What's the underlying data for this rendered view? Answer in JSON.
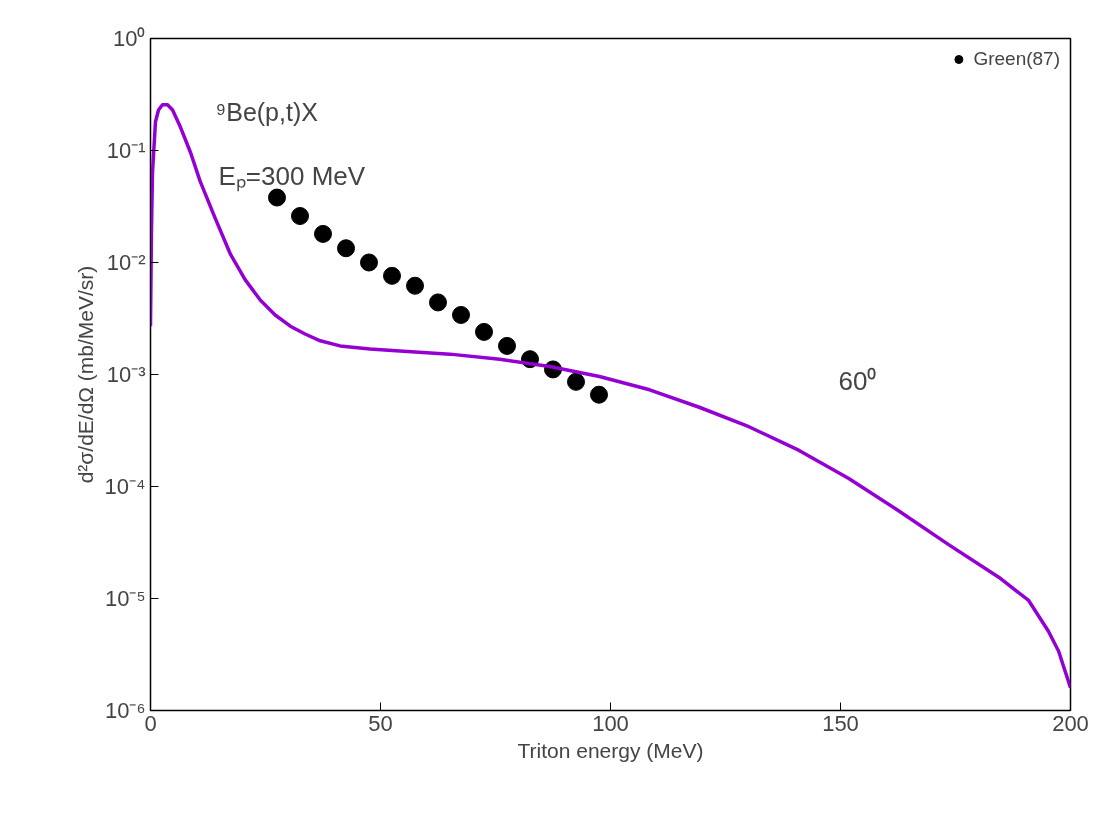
{
  "chart_data": {
    "type": "scatter",
    "xlabel": "Triton energy (MeV)",
    "ylabel": "d²σ/dE/dΩ (mb/MeV/sr)",
    "annotations": [
      "⁹Be(p,t)X",
      "Eₚ=300 MeV",
      "60⁰"
    ],
    "log": "y",
    "xlim": [
      0,
      200
    ],
    "xticks": [
      0,
      50,
      100,
      150,
      200
    ],
    "ylim": [
      1e-06,
      1
    ],
    "yticks": [
      {
        "value": 1e-06,
        "label": "10⁻⁶"
      },
      {
        "value": 1e-05,
        "label": "10⁻⁵"
      },
      {
        "value": 0.0001,
        "label": "10⁻⁴"
      },
      {
        "value": 0.001,
        "label": "10⁻³"
      },
      {
        "value": 0.01,
        "label": "10⁻²"
      },
      {
        "value": 0.1,
        "label": "10⁻¹"
      },
      {
        "value": 1,
        "label": "10⁰"
      }
    ],
    "grid": false,
    "legend": "top right",
    "series": [
      {
        "name": "Green(87)",
        "marker": "circle",
        "color": "#000000",
        "x": [
          27.5,
          32.5,
          37.5,
          42.5,
          47.5,
          52.5,
          57.5,
          62.5,
          67.5,
          72.5,
          77.5,
          82.5,
          87.5,
          92.5,
          97.5
        ],
        "values": [
          0.038,
          0.026,
          0.018,
          0.0134,
          0.01,
          0.0076,
          0.0062,
          0.0044,
          0.0034,
          0.0024,
          0.0018,
          0.00137,
          0.00111,
          0.00086,
          0.00066
        ]
      },
      {
        "type": "line",
        "line_style": "solid",
        "color": "#9400d3",
        "x": [
          0,
          0.2,
          0.43,
          1.08,
          1.74,
          2.6,
          3.7,
          4.8,
          6.5,
          8.7,
          10.8,
          14.1,
          17.4,
          20.6,
          23.9,
          27.1,
          30.4,
          33.6,
          36.9,
          41.2,
          47.7,
          54.2,
          65.1,
          75.9,
          86.8,
          97.6,
          108.5,
          119.3,
          130.2,
          141.0,
          151.8,
          162.7,
          173.5,
          184.4,
          190.9,
          195.2,
          197.4,
          200
        ],
        "values": [
          0.0027,
          0.018,
          0.063,
          0.18,
          0.23,
          0.256,
          0.256,
          0.23,
          0.162,
          0.096,
          0.053,
          0.0246,
          0.0118,
          0.007,
          0.0046,
          0.0034,
          0.0027,
          0.0023,
          0.002,
          0.0018,
          0.00169,
          0.00162,
          0.00152,
          0.00137,
          0.00118,
          0.00096,
          0.00073,
          0.00051,
          0.00034,
          0.00021,
          0.000118,
          6.05e-05,
          3.03e-05,
          1.55e-05,
          9.6e-06,
          5.1e-06,
          3.4e-06,
          1.6e-06
        ]
      }
    ]
  }
}
